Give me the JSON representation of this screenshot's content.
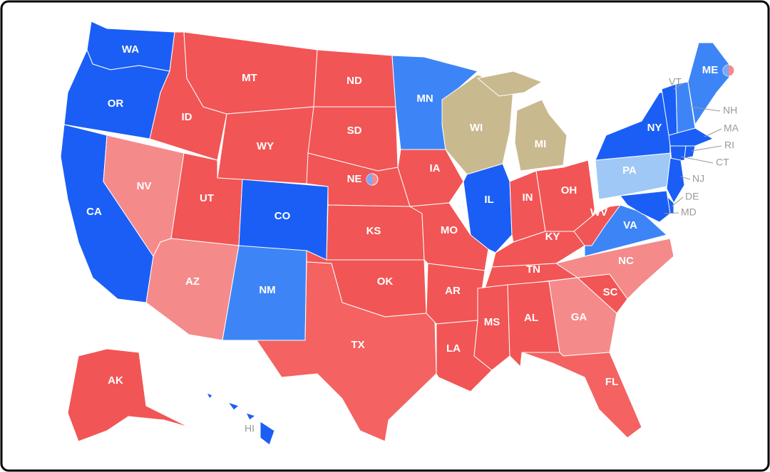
{
  "states": [
    {
      "label": "WA",
      "color": "#1a5ef5"
    },
    {
      "label": "OR",
      "color": "#1a5ef5"
    },
    {
      "label": "CA",
      "color": "#1a5ef5"
    },
    {
      "label": "ID",
      "color": "#f25555"
    },
    {
      "label": "NV",
      "color": "#f58a8a"
    },
    {
      "label": "MT",
      "color": "#f25555"
    },
    {
      "label": "WY",
      "color": "#f25555"
    },
    {
      "label": "UT",
      "color": "#f25555"
    },
    {
      "label": "AZ",
      "color": "#f58a8a"
    },
    {
      "label": "CO",
      "color": "#1a5ef5"
    },
    {
      "label": "NM",
      "color": "#3d85f7"
    },
    {
      "label": "ND",
      "color": "#f25555"
    },
    {
      "label": "SD",
      "color": "#f25555"
    },
    {
      "label": "NE",
      "color": "#f25555"
    },
    {
      "label": "KS",
      "color": "#f25555"
    },
    {
      "label": "OK",
      "color": "#f25555"
    },
    {
      "label": "TX",
      "color": "#f46262"
    },
    {
      "label": "MN",
      "color": "#3d85f7"
    },
    {
      "label": "IA",
      "color": "#f25555"
    },
    {
      "label": "MO",
      "color": "#f25555"
    },
    {
      "label": "AR",
      "color": "#f25555"
    },
    {
      "label": "LA",
      "color": "#f25555"
    },
    {
      "label": "WI",
      "color": "#c9b98f"
    },
    {
      "label": "IL",
      "color": "#1a5ef5"
    },
    {
      "label": "MI",
      "color": "#c9b98f"
    },
    {
      "label": "IN",
      "color": "#f25555"
    },
    {
      "label": "OH",
      "color": "#f25555"
    },
    {
      "label": "KY",
      "color": "#f25555"
    },
    {
      "label": "TN",
      "color": "#f25555"
    },
    {
      "label": "MS",
      "color": "#f25555"
    },
    {
      "label": "AL",
      "color": "#f25555"
    },
    {
      "label": "GA",
      "color": "#f58a8a"
    },
    {
      "label": "FL",
      "color": "#f46262"
    },
    {
      "label": "SC",
      "color": "#f25555"
    },
    {
      "label": "NC",
      "color": "#f58a8a"
    },
    {
      "label": "VA",
      "color": "#3d85f7"
    },
    {
      "label": "WV",
      "color": "#f25555"
    },
    {
      "label": "PA",
      "color": "#9fc8f6"
    },
    {
      "label": "NY",
      "color": "#1a5ef5"
    },
    {
      "label": "VT",
      "color": "#1a5ef5"
    },
    {
      "label": "NH",
      "color": "#3d85f7"
    },
    {
      "label": "ME",
      "color": "#3d85f7"
    },
    {
      "label": "MA",
      "color": "#1a5ef5"
    },
    {
      "label": "CT",
      "color": "#1a5ef5"
    },
    {
      "label": "RI",
      "color": "#1a5ef5"
    },
    {
      "label": "NJ",
      "color": "#1a5ef5"
    },
    {
      "label": "DE",
      "color": "#1a5ef5"
    },
    {
      "label": "MD",
      "color": "#1a5ef5"
    },
    {
      "label": "AK",
      "color": "#f25555"
    },
    {
      "label": "HI",
      "color": "#1a5ef5"
    }
  ]
}
